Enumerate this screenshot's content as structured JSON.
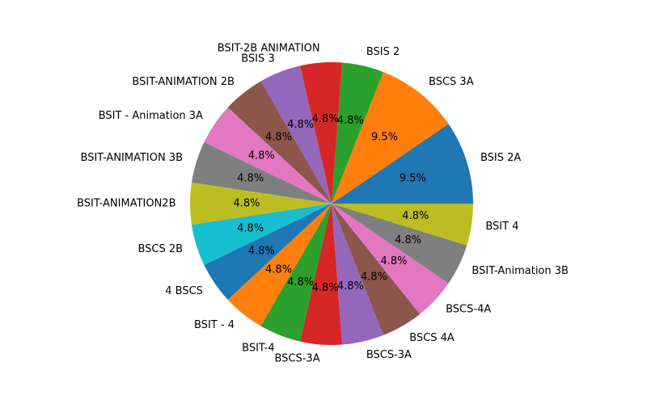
{
  "chart_data": {
    "type": "pie",
    "start_angle_deg": 0,
    "direction": "counterclockwise",
    "slices": [
      {
        "label": "BSIS 2A",
        "value": 2,
        "pct_label": "9.5%",
        "color": "#1f77b4"
      },
      {
        "label": "BSCS 3A",
        "value": 2,
        "pct_label": "9.5%",
        "color": "#ff7f0e"
      },
      {
        "label": "BSIS 2",
        "value": 1,
        "pct_label": "4.8%",
        "color": "#2ca02c"
      },
      {
        "label": "BSIT-2B ANIMATION",
        "value": 1,
        "pct_label": "4.8%",
        "color": "#d62728"
      },
      {
        "label": "BSIS 3",
        "value": 1,
        "pct_label": "4.8%",
        "color": "#9467bd"
      },
      {
        "label": "BSIT-ANIMATION 2B",
        "value": 1,
        "pct_label": "4.8%",
        "color": "#8c564b"
      },
      {
        "label": "BSIT - Animation 3A",
        "value": 1,
        "pct_label": "4.8%",
        "color": "#e377c2"
      },
      {
        "label": "BSIT-ANIMATION 3B",
        "value": 1,
        "pct_label": "4.8%",
        "color": "#7f7f7f"
      },
      {
        "label": "BSIT-ANIMATION2B",
        "value": 1,
        "pct_label": "4.8%",
        "color": "#bcbd22"
      },
      {
        "label": "BSCS 2B",
        "value": 1,
        "pct_label": "4.8%",
        "color": "#17becf"
      },
      {
        "label": "4 BSCS",
        "value": 1,
        "pct_label": "4.8%",
        "color": "#1f77b4"
      },
      {
        "label": "BSIT - 4",
        "value": 1,
        "pct_label": "4.8%",
        "color": "#ff7f0e"
      },
      {
        "label": "BSIT-4",
        "value": 1,
        "pct_label": "4.8%",
        "color": "#2ca02c"
      },
      {
        "label": "BSCS-3A",
        "value": 1,
        "pct_label": "4.8%",
        "color": "#d62728"
      },
      {
        "label": "BSCS-3A",
        "value": 1,
        "pct_label": "4.8%",
        "color": "#9467bd"
      },
      {
        "label": "BSCS 4A",
        "value": 1,
        "pct_label": "4.8%",
        "color": "#8c564b"
      },
      {
        "label": "BSCS-4A",
        "value": 1,
        "pct_label": "4.8%",
        "color": "#e377c2"
      },
      {
        "label": "BSIT-Animation 3B",
        "value": 1,
        "pct_label": "4.8%",
        "color": "#7f7f7f"
      },
      {
        "label": "BSIT 4",
        "value": 1,
        "pct_label": "4.8%",
        "color": "#bcbd22"
      }
    ]
  }
}
